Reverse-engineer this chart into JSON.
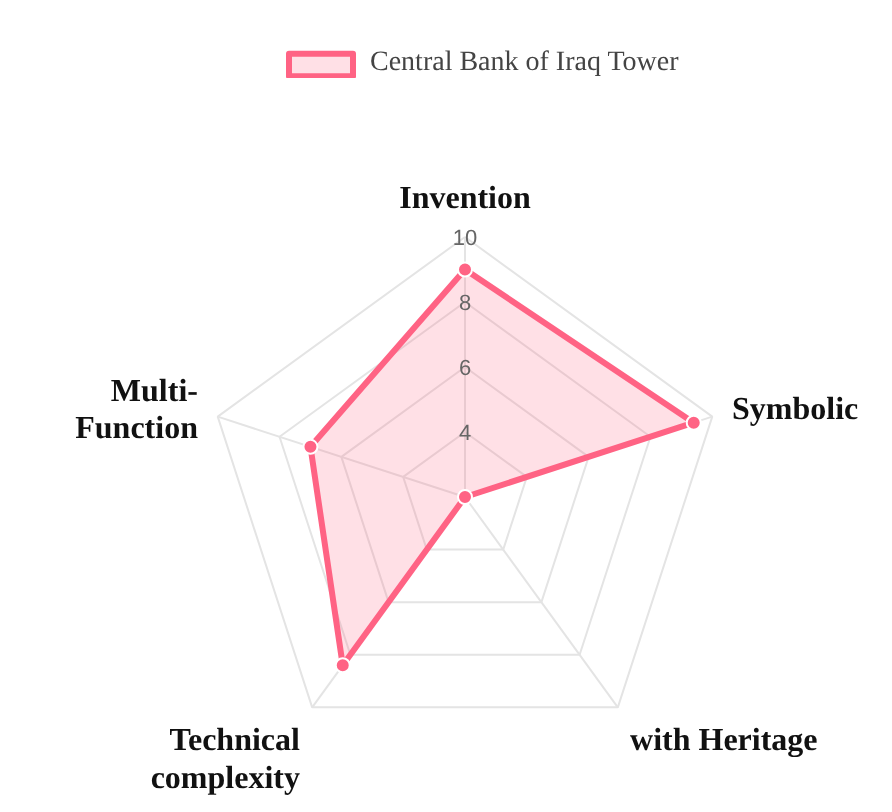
{
  "chart_data": {
    "type": "radar",
    "categories": [
      "Invention",
      "Symbolic",
      "with Heritage",
      "Technical\ncomplexity",
      "Multi-\nFunction"
    ],
    "series": [
      {
        "name": "Central Bank of Iraq Tower",
        "color": "#ff6384",
        "values": [
          9,
          9.4,
          2,
          8.4,
          7
        ]
      }
    ],
    "ylim": [
      2,
      10
    ],
    "yticks": [
      4,
      6,
      8,
      10
    ],
    "grid": true,
    "legend": "top",
    "marker": "circle"
  }
}
